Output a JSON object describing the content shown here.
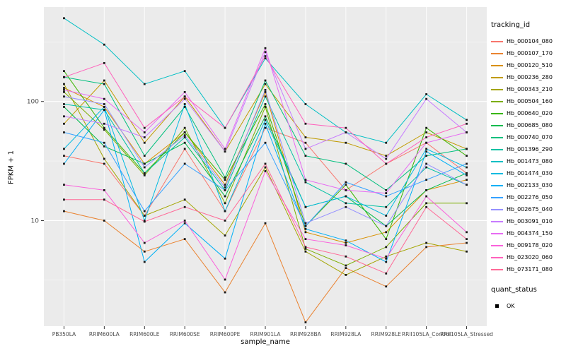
{
  "chart_data": {
    "type": "line",
    "title": "",
    "xlabel": "sample_name",
    "ylabel": "FPKM + 1",
    "y_scale": "log10",
    "ylim": [
      1.3,
      620
    ],
    "y_ticks": [
      {
        "value": 10,
        "label": "10"
      },
      {
        "value": 100,
        "label": "100"
      }
    ],
    "y_minor_ticks": [
      3.162,
      31.62,
      316.2
    ],
    "grid": true,
    "panel_color": "#EBEBEB",
    "grid_color": "#FFFFFF",
    "marker": "black-square",
    "marker_color": "#1a1a1a",
    "legend_position": "right",
    "categories": [
      "PB350LA",
      "RRIM600LA",
      "RRIM600LE",
      "RRIM600SE",
      "RRIM600PE",
      "RRIM901LA",
      "RRIM928BA",
      "RRIM928LA",
      "RRIM928LE",
      "RRII105LA_Control",
      "RRII105LA_Stressed"
    ],
    "series": [
      {
        "name": "Hb_000104_080",
        "color": "#F8766D",
        "values": [
          35,
          30,
          11,
          40,
          12,
          60,
          45,
          18,
          30,
          45,
          25
        ]
      },
      {
        "name": "Hb_000107_170",
        "color": "#EA8331",
        "values": [
          12,
          10,
          5.5,
          7,
          2.5,
          9.5,
          1.4,
          4,
          2.8,
          6,
          6.5
        ]
      },
      {
        "name": "Hb_000120_510",
        "color": "#D89000",
        "values": [
          130,
          90,
          30,
          55,
          20,
          120,
          8,
          6.5,
          8,
          18,
          22
        ]
      },
      {
        "name": "Hb_000236_280",
        "color": "#C09B00",
        "values": [
          65,
          150,
          45,
          110,
          38,
          140,
          50,
          45,
          35,
          55,
          40
        ]
      },
      {
        "name": "Hb_000343_210",
        "color": "#A3A500",
        "values": [
          140,
          33,
          11,
          15,
          7.5,
          28,
          5.5,
          3.5,
          5,
          6.5,
          5.5
        ]
      },
      {
        "name": "Hb_000504_160",
        "color": "#7CAE00",
        "values": [
          120,
          58,
          24,
          60,
          14,
          90,
          5.8,
          4.2,
          6,
          14,
          14
        ]
      },
      {
        "name": "Hb_000640_020",
        "color": "#39B600",
        "values": [
          180,
          60,
          25,
          55,
          22,
          95,
          9,
          20,
          7,
          60,
          35
        ]
      },
      {
        "name": "Hb_000685_080",
        "color": "#00BB4E",
        "values": [
          90,
          42,
          30,
          45,
          16,
          75,
          13,
          16,
          9,
          18,
          25
        ]
      },
      {
        "name": "Hb_000740_070",
        "color": "#00BF7D",
        "values": [
          160,
          140,
          35,
          90,
          23,
          150,
          35,
          30,
          18,
          35,
          40
        ]
      },
      {
        "name": "Hb_001396_290",
        "color": "#00C1A3",
        "values": [
          95,
          85,
          25,
          50,
          18,
          110,
          21,
          14,
          13,
          28,
          20
        ]
      },
      {
        "name": "Hb_001473_080",
        "color": "#00BFC4",
        "values": [
          500,
          300,
          140,
          180,
          60,
          230,
          95,
          55,
          45,
          115,
          70
        ]
      },
      {
        "name": "Hb_001474_030",
        "color": "#00BAE0",
        "values": [
          40,
          90,
          10,
          95,
          12,
          70,
          13,
          16,
          11,
          40,
          28
        ]
      },
      {
        "name": "Hb_002133_030",
        "color": "#00B0F6",
        "values": [
          30,
          85,
          4.5,
          9.5,
          4.8,
          65,
          8.5,
          6.8,
          4.5,
          38,
          24
        ]
      },
      {
        "name": "Hb_002276_050",
        "color": "#35A2FF",
        "values": [
          55,
          45,
          12,
          30,
          18,
          45,
          9,
          21,
          16,
          22,
          30
        ]
      },
      {
        "name": "Hb_002675_040",
        "color": "#9590FF",
        "values": [
          110,
          95,
          28,
          52,
          19,
          125,
          9.5,
          13,
          9,
          30,
          20
        ]
      },
      {
        "name": "Hb_003091_010",
        "color": "#C77CFF",
        "values": [
          75,
          65,
          50,
          105,
          38,
          260,
          40,
          55,
          33,
          105,
          55
        ]
      },
      {
        "name": "Hb_004374_150",
        "color": "#E76BF3",
        "values": [
          125,
          105,
          55,
          120,
          40,
          280,
          22,
          18,
          17,
          45,
          55
        ]
      },
      {
        "name": "Hb_009178_020",
        "color": "#FA62DB",
        "values": [
          20,
          18,
          6.5,
          10,
          3.2,
          26,
          7,
          6.2,
          4.8,
          16,
          8
        ]
      },
      {
        "name": "Hb_023020_060",
        "color": "#FF62BC",
        "values": [
          160,
          210,
          60,
          110,
          60,
          240,
          65,
          60,
          30,
          50,
          65
        ]
      },
      {
        "name": "Hb_073171_080",
        "color": "#FF6A98",
        "values": [
          15,
          15,
          9.8,
          13,
          10,
          30,
          6,
          5,
          3.6,
          13,
          7
        ]
      }
    ],
    "legend": {
      "color_title": "tracking_id",
      "shape_title": "quant_status",
      "shape_items": [
        {
          "label": "OK"
        }
      ]
    }
  }
}
